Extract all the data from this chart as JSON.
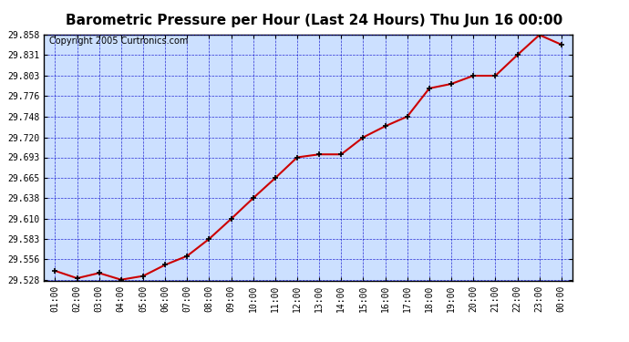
{
  "title": "Barometric Pressure per Hour (Last 24 Hours) Thu Jun 16 00:00",
  "copyright": "Copyright 2005 Curtronics.com",
  "x_labels": [
    "01:00",
    "02:00",
    "03:00",
    "04:00",
    "05:00",
    "06:00",
    "07:00",
    "08:00",
    "09:00",
    "10:00",
    "11:00",
    "12:00",
    "13:00",
    "14:00",
    "15:00",
    "16:00",
    "17:00",
    "18:00",
    "19:00",
    "20:00",
    "21:00",
    "22:00",
    "23:00",
    "00:00"
  ],
  "y_values": [
    29.54,
    29.53,
    29.537,
    29.528,
    29.533,
    29.548,
    29.56,
    29.583,
    29.61,
    29.638,
    29.665,
    29.693,
    29.697,
    29.697,
    29.72,
    29.735,
    29.748,
    29.786,
    29.792,
    29.803,
    29.803,
    29.831,
    29.858,
    29.845
  ],
  "y_min": 29.528,
  "y_max": 29.858,
  "y_ticks": [
    29.528,
    29.556,
    29.583,
    29.61,
    29.638,
    29.665,
    29.693,
    29.72,
    29.748,
    29.776,
    29.803,
    29.831,
    29.858
  ],
  "line_color": "#cc0000",
  "marker_color": "#000000",
  "bg_color": "#cce0ff",
  "grid_color": "#0000cc",
  "title_color": "#000000",
  "border_color": "#000000",
  "fig_bg_color": "#ffffff",
  "copyright_fontsize": 7,
  "title_fontsize": 11
}
